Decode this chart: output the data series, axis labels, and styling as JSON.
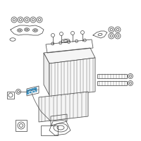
{
  "bg_color": "#ffffff",
  "line_color": "#4a4a4a",
  "highlight_color": "#3a8fbf",
  "fig_width": 2.0,
  "fig_height": 2.0,
  "dpi": 100
}
